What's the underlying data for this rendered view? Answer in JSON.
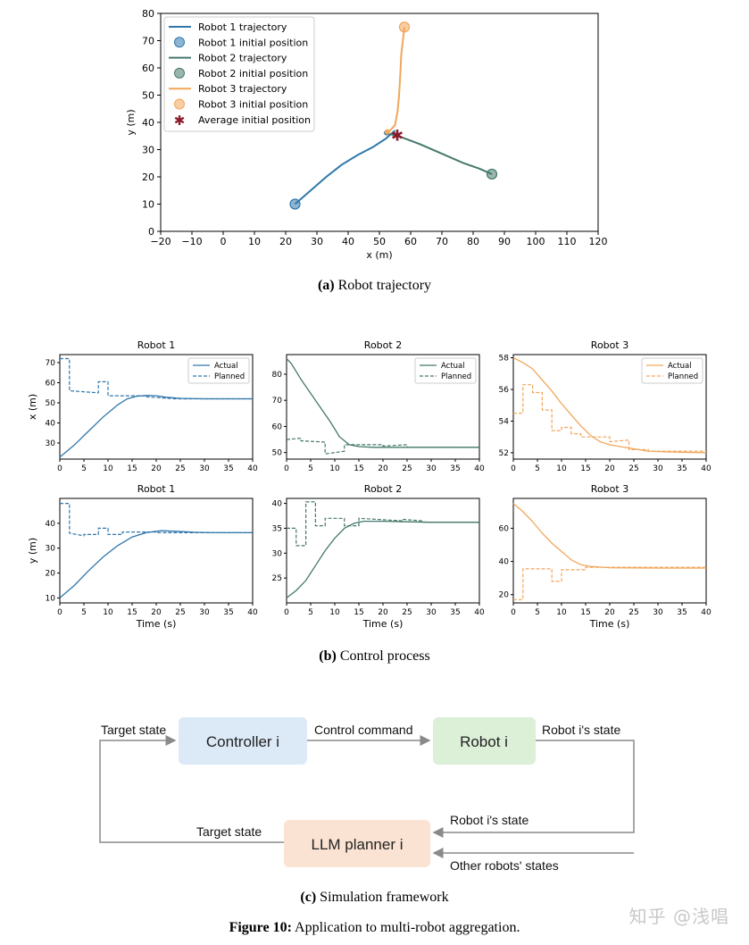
{
  "colors": {
    "robot1": "#2f77ab",
    "robot2": "#44786b",
    "robot3": "#f2a65a",
    "avg_marker": "#8b1a2b",
    "controller_box": "#dce9f7",
    "robot_box": "#dcefd7",
    "planner_box": "#fbe3d3",
    "arrow": "#8a8a8a"
  },
  "panel_a": {
    "caption_label": "(a)",
    "caption_text": "Robot trajectory",
    "chart_data": {
      "type": "line",
      "xlabel": "x (m)",
      "ylabel": "y (m)",
      "xlim": [
        -20,
        120
      ],
      "ylim": [
        0,
        80
      ],
      "xticks": [
        -20,
        -10,
        0,
        10,
        20,
        30,
        40,
        50,
        60,
        70,
        80,
        90,
        100,
        110,
        120
      ],
      "xtick_labels": [
        "−20",
        "−10",
        "0",
        "10",
        "20",
        "30",
        "40",
        "50",
        "60",
        "70",
        "80",
        "90",
        "100",
        "110",
        "120"
      ],
      "yticks": [
        0,
        10,
        20,
        30,
        40,
        50,
        60,
        70,
        80
      ],
      "ytick_labels": [
        "0",
        "10",
        "20",
        "30",
        "40",
        "50",
        "60",
        "70",
        "80"
      ],
      "legend_position": "top-left",
      "legend": [
        {
          "label": "Robot 1 trajectory",
          "kind": "line",
          "color_key": "robot1"
        },
        {
          "label": "Robot 1 initial position",
          "kind": "dot",
          "color_key": "robot1"
        },
        {
          "label": "Robot 2 trajectory",
          "kind": "line",
          "color_key": "robot2"
        },
        {
          "label": "Robot 2 initial position",
          "kind": "dot",
          "color_key": "robot2"
        },
        {
          "label": "Robot 3 trajectory",
          "kind": "line",
          "color_key": "robot3"
        },
        {
          "label": "Robot 3 initial position",
          "kind": "dot",
          "color_key": "robot3"
        },
        {
          "label": "Average initial position",
          "kind": "star",
          "color_key": "avg_marker"
        }
      ],
      "series": [
        {
          "name": "Robot 1 trajectory",
          "color_key": "robot1",
          "x": [
            23,
            28,
            33,
            38,
            43,
            48,
            52,
            55
          ],
          "y": [
            10,
            15,
            20,
            24.5,
            28,
            31,
            34,
            37
          ]
        },
        {
          "name": "Robot 2 trajectory",
          "color_key": "robot2",
          "x": [
            86,
            82,
            77,
            70,
            63,
            56,
            52
          ],
          "y": [
            21,
            23,
            25,
            28.5,
            32,
            35,
            36
          ]
        },
        {
          "name": "Robot 3 trajectory",
          "color_key": "robot3",
          "x": [
            58,
            57.5,
            57,
            56.7,
            56.3,
            55.8,
            55,
            53
          ],
          "y": [
            75,
            70,
            65,
            58,
            50,
            44,
            39,
            36.5
          ]
        }
      ],
      "initial_positions": [
        {
          "name": "Robot 1 initial position",
          "x": 23,
          "y": 10,
          "color_key": "robot1"
        },
        {
          "name": "Robot 2 initial position",
          "x": 86,
          "y": 21,
          "color_key": "robot2"
        },
        {
          "name": "Robot 3 initial position",
          "x": 58,
          "y": 75,
          "color_key": "robot3"
        }
      ],
      "final_points": [
        {
          "x": 52.3,
          "y": 36.2,
          "color_key": "robot1"
        },
        {
          "x": 52.5,
          "y": 36.5,
          "color_key": "robot3"
        }
      ],
      "average_initial_position": {
        "x": 55.7,
        "y": 35.3
      }
    }
  },
  "panel_b": {
    "caption_label": "(b)",
    "caption_text": "Control process",
    "legend_actual": "Actual",
    "legend_planned": "Planned",
    "chart_data": [
      {
        "type": "line",
        "title": "Robot 1",
        "ylabel": "x (m)",
        "xlabel": "",
        "color_key": "robot1",
        "legend": true,
        "xlim": [
          0,
          40
        ],
        "ylim": [
          22,
          74
        ],
        "yticks": [
          30,
          40,
          50,
          60,
          70
        ],
        "xticks": [
          0,
          5,
          10,
          15,
          20,
          25,
          30,
          35,
          40
        ],
        "actual": {
          "x": [
            0,
            3,
            6,
            9,
            12,
            14,
            16,
            18,
            20,
            22,
            25,
            30,
            40
          ],
          "y": [
            23,
            29,
            36,
            43,
            49,
            52,
            53.3,
            53.7,
            53.5,
            52.8,
            52.2,
            52,
            52
          ]
        },
        "planned": {
          "x": [
            0,
            2,
            2,
            8,
            8,
            10,
            10,
            18,
            18,
            24,
            24,
            40
          ],
          "y": [
            72,
            72,
            56,
            55,
            60.5,
            60.5,
            53.5,
            53.5,
            53,
            52,
            52,
            52
          ]
        }
      },
      {
        "type": "line",
        "title": "Robot 2",
        "ylabel": "",
        "xlabel": "",
        "color_key": "robot2",
        "legend": true,
        "xlim": [
          0,
          40
        ],
        "ylim": [
          47.5,
          87.5
        ],
        "yticks": [
          50,
          60,
          70,
          80
        ],
        "xticks": [
          0,
          5,
          10,
          15,
          20,
          25,
          30,
          35,
          40
        ],
        "actual": {
          "x": [
            0,
            1,
            3,
            6,
            9,
            11,
            13,
            15,
            18,
            22,
            30,
            40
          ],
          "y": [
            86,
            84,
            78,
            70,
            62,
            56,
            53,
            52.3,
            52,
            52,
            52,
            52
          ]
        },
        "planned": {
          "x": [
            0,
            3,
            3,
            8,
            8,
            10,
            10,
            12,
            12,
            20,
            20,
            25,
            25,
            40
          ],
          "y": [
            55,
            55.5,
            54.5,
            54,
            49.5,
            50,
            50,
            50.5,
            53,
            53,
            52.5,
            53,
            52,
            52
          ]
        }
      },
      {
        "type": "line",
        "title": "Robot 3",
        "ylabel": "",
        "xlabel": "",
        "color_key": "robot3",
        "legend": true,
        "xlim": [
          0,
          40
        ],
        "ylim": [
          51.6,
          58.2
        ],
        "yticks": [
          52,
          54,
          56,
          58
        ],
        "xticks": [
          0,
          5,
          10,
          15,
          20,
          25,
          30,
          35,
          40
        ],
        "actual": {
          "x": [
            0,
            2,
            4,
            6,
            8,
            10,
            12,
            14,
            16,
            18,
            20,
            24,
            28,
            32,
            40
          ],
          "y": [
            58,
            57.7,
            57.3,
            56.6,
            55.9,
            55.1,
            54.4,
            53.7,
            53.1,
            52.7,
            52.5,
            52.3,
            52.1,
            52.05,
            52
          ]
        },
        "planned": {
          "x": [
            0,
            2,
            2,
            4,
            4,
            6,
            6,
            8,
            8,
            10,
            10,
            12,
            12,
            14,
            14,
            20,
            20,
            24,
            24,
            28,
            28,
            40
          ],
          "y": [
            54.5,
            54.5,
            56.3,
            56.3,
            55.8,
            55.8,
            54.7,
            54.7,
            53.4,
            53.4,
            53.6,
            53.6,
            53.2,
            53.2,
            53,
            53,
            52.7,
            52.8,
            52.2,
            52.2,
            52.1,
            52.1
          ]
        }
      },
      {
        "type": "line",
        "title": "Robot 1",
        "ylabel": "y (m)",
        "xlabel": "Time (s)",
        "color_key": "robot1",
        "legend": false,
        "xlim": [
          0,
          40
        ],
        "ylim": [
          8,
          50
        ],
        "yticks": [
          10,
          20,
          30,
          40
        ],
        "xticks": [
          0,
          5,
          10,
          15,
          20,
          25,
          30,
          35,
          40
        ],
        "actual": {
          "x": [
            0,
            3,
            6,
            9,
            12,
            15,
            18,
            21,
            24,
            28,
            32,
            40
          ],
          "y": [
            10,
            15,
            21,
            26.5,
            31,
            34.5,
            36.3,
            37,
            36.8,
            36.4,
            36.2,
            36.2
          ]
        },
        "planned": {
          "x": [
            0,
            2,
            2,
            5,
            5,
            8,
            8,
            10,
            10,
            13,
            13,
            20,
            20,
            40
          ],
          "y": [
            48,
            48,
            36,
            35,
            35.5,
            35.5,
            38,
            38,
            35.5,
            35.5,
            36.5,
            36.5,
            36.2,
            36.2
          ]
        }
      },
      {
        "type": "line",
        "title": "Robot 2",
        "ylabel": "",
        "xlabel": "Time (s)",
        "color_key": "robot2",
        "legend": false,
        "xlim": [
          0,
          40
        ],
        "ylim": [
          20,
          41
        ],
        "yticks": [
          25,
          30,
          35,
          40
        ],
        "xticks": [
          0,
          5,
          10,
          15,
          20,
          25,
          30,
          35,
          40
        ],
        "actual": {
          "x": [
            0,
            2,
            4,
            6,
            8,
            10,
            12,
            14,
            16,
            20,
            25,
            30,
            40
          ],
          "y": [
            21,
            22.5,
            24.5,
            27.5,
            30.5,
            33,
            35,
            36,
            36.4,
            36.4,
            36.3,
            36.2,
            36.2
          ]
        },
        "planned": {
          "x": [
            0,
            2,
            2,
            4,
            4,
            6,
            6,
            8,
            8,
            12,
            12,
            15,
            15,
            24,
            24,
            28,
            28,
            40
          ],
          "y": [
            35,
            35,
            31.5,
            31.5,
            40.3,
            40.3,
            35.5,
            35.5,
            37,
            37,
            35.5,
            35.5,
            37,
            36.5,
            36.8,
            36.5,
            36.2,
            36.2
          ]
        }
      },
      {
        "type": "line",
        "title": "Robot 3",
        "ylabel": "",
        "xlabel": "Time (s)",
        "color_key": "robot3",
        "legend": false,
        "xlim": [
          0,
          40
        ],
        "ylim": [
          15,
          78
        ],
        "yticks": [
          20,
          40,
          60
        ],
        "xticks": [
          0,
          5,
          10,
          15,
          20,
          25,
          30,
          35,
          40
        ],
        "actual": {
          "x": [
            0,
            2,
            4,
            6,
            8,
            10,
            12,
            14,
            16,
            20,
            25,
            30,
            40
          ],
          "y": [
            75,
            70,
            64,
            57,
            51,
            46,
            41,
            38,
            37,
            36.2,
            36.1,
            36,
            36
          ]
        },
        "planned": {
          "x": [
            0,
            2,
            2,
            8,
            8,
            10,
            10,
            15,
            15,
            40
          ],
          "y": [
            17,
            17,
            35.5,
            35.5,
            28,
            28,
            35,
            35,
            36.5,
            36.5
          ]
        }
      }
    ]
  },
  "panel_c": {
    "caption_label": "(c)",
    "caption_text": "Simulation framework",
    "boxes": {
      "controller": "Controller i",
      "robot": "Robot i",
      "planner": "LLM planner i"
    },
    "labels": {
      "target_state_top": "Target state",
      "control_command": "Control command",
      "robot_state_top": "Robot i's state",
      "robot_state_mid": "Robot i's state",
      "target_state_bottom": "Target state",
      "other_robots": "Other robots' states"
    }
  },
  "figure": {
    "label": "Figure 10:",
    "text": "Application to multi-robot aggregation."
  },
  "watermark": "知乎 @浅唱"
}
